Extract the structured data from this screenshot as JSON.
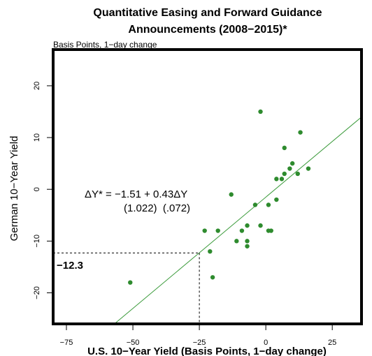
{
  "chart_data": {
    "type": "scatter",
    "title_line1": "Quantitative Easing and Forward Guidance",
    "title_line2": "Announcements (2008−2015)*",
    "subtitle": "Basis Points, 1−day change",
    "xlabel": "U.S. 10−Year Yield (Basis Points, 1−day change)",
    "ylabel": "German 10−Year Yield",
    "xlim": [
      -80,
      36
    ],
    "ylim": [
      -26,
      27
    ],
    "x_ticks": [
      -75,
      -50,
      -25,
      0,
      25
    ],
    "y_ticks": [
      -20,
      -10,
      0,
      10,
      20
    ],
    "x_tick_labels": [
      "−75",
      "−50",
      "−25",
      "0",
      "25"
    ],
    "y_tick_labels": [
      "−20",
      "−10",
      "0",
      "10",
      "20"
    ],
    "grid": false,
    "point_color": "#2e8b2e",
    "line_color": "#3a9a3a",
    "regression": {
      "intercept": -1.51,
      "slope": 0.43
    },
    "annotation_equation": "ΔY* = −1.51 + 0.43ΔY",
    "annotation_se": "(1.022)  (.072)",
    "marker": {
      "x": -25,
      "y": -12.3,
      "label": "−12.3"
    },
    "points": [
      {
        "x": -2,
        "y": 15
      },
      {
        "x": 13,
        "y": 11
      },
      {
        "x": 7,
        "y": 8
      },
      {
        "x": 10,
        "y": 5
      },
      {
        "x": 9,
        "y": 4
      },
      {
        "x": 16,
        "y": 4
      },
      {
        "x": 7,
        "y": 3
      },
      {
        "x": 12,
        "y": 3
      },
      {
        "x": 4,
        "y": 2
      },
      {
        "x": 6,
        "y": 2
      },
      {
        "x": -13,
        "y": -1
      },
      {
        "x": 4,
        "y": -2
      },
      {
        "x": -4,
        "y": -3
      },
      {
        "x": 1,
        "y": -3
      },
      {
        "x": -2,
        "y": -7
      },
      {
        "x": -7,
        "y": -7
      },
      {
        "x": -23,
        "y": -8
      },
      {
        "x": -18,
        "y": -8
      },
      {
        "x": -9,
        "y": -8
      },
      {
        "x": 1,
        "y": -8
      },
      {
        "x": 2,
        "y": -8
      },
      {
        "x": -11,
        "y": -10
      },
      {
        "x": -7,
        "y": -10
      },
      {
        "x": -7,
        "y": -11
      },
      {
        "x": -21,
        "y": -12
      },
      {
        "x": -20,
        "y": -17
      },
      {
        "x": -51,
        "y": -18
      }
    ]
  }
}
